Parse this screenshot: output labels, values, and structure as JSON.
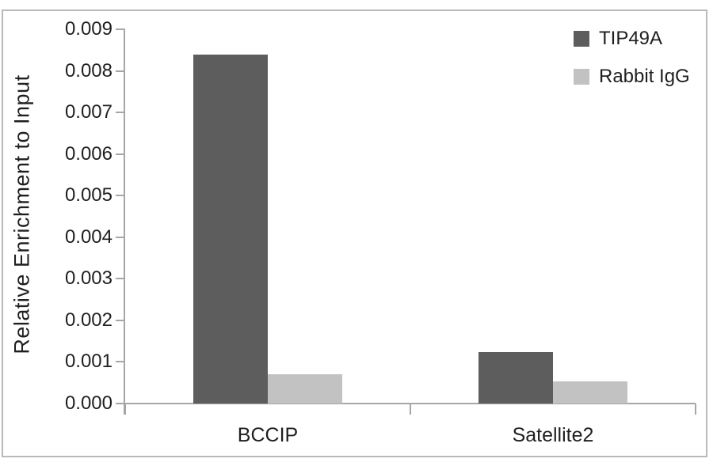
{
  "figure": {
    "background": "#ffffff",
    "border_color": "#b9b9b9"
  },
  "chart_data": {
    "type": "bar",
    "title": "",
    "xlabel": "",
    "ylabel": "Relative Enrichment to Input",
    "categories": [
      "BCCIP",
      "Satellite2"
    ],
    "series": [
      {
        "name": "TIP49A",
        "color": "#5d5d5d",
        "values": [
          0.0084,
          0.00124
        ]
      },
      {
        "name": "Rabbit IgG",
        "color": "#c2c2c2",
        "values": [
          0.0007,
          0.00053
        ]
      }
    ],
    "ylim": [
      0,
      0.009
    ],
    "ytick_step": 0.001,
    "ytick_labels": [
      "0.000",
      "0.001",
      "0.002",
      "0.003",
      "0.004",
      "0.005",
      "0.006",
      "0.007",
      "0.008",
      "0.009"
    ],
    "grid": false,
    "legend_position": "top-right",
    "axis_color": "#a6a6a6",
    "text_color": "#1f1f1f"
  }
}
